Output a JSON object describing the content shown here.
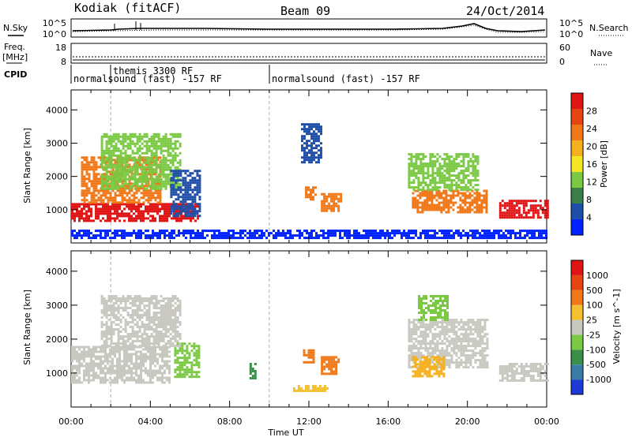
{
  "header": {
    "station": "Kodiak (fitACF)",
    "beam": "Beam 09",
    "date": "24/Oct/2014"
  },
  "top_panels": {
    "nsky_label": "N.Sky",
    "nsearch_label": "N.Search",
    "noise_ticks_left": [
      "10^5",
      "10^0"
    ],
    "noise_ticks_right": [
      "10^5",
      "10^0"
    ],
    "freq_label_1": "Freq.",
    "freq_label_2": "[MHz]",
    "freq_ticks": [
      "18",
      "8"
    ],
    "nave_label": "Nave",
    "nave_ticks": [
      "60",
      "0"
    ],
    "cpid_label": "CPID",
    "cpid_entries": [
      {
        "text": "normalsound (fast) -157 RF",
        "start_hour": 0
      },
      {
        "text": "themis 3300 RF",
        "start_hour": 2
      },
      {
        "text": "normalsound (fast) -157 RF",
        "start_hour": 10
      }
    ]
  },
  "power_colorbar": {
    "title": "Power [dB]",
    "ticks": [
      "28",
      "24",
      "20",
      "16",
      "12",
      "8",
      "4"
    ],
    "colors": [
      "#0022ff",
      "#1f4ea8",
      "#3a7f4a",
      "#7ac943",
      "#f5e625",
      "#f5b01e",
      "#f07818",
      "#e64512",
      "#e01414"
    ]
  },
  "velocity_colorbar": {
    "title": "Velocity [m s^-1]",
    "ticks": [
      "1000",
      "500",
      "100",
      "25",
      "-25",
      "-100",
      "-500",
      "-1000"
    ],
    "colors": [
      "#1e3ad6",
      "#3a7ea8",
      "#3a8f4a",
      "#7ac943",
      "#c8c8c0",
      "#f5c030",
      "#f07818",
      "#e64512",
      "#e01414"
    ]
  },
  "chart_data": [
    {
      "type": "heatmap",
      "name": "power",
      "ylabel": "Slant Range [km]",
      "xlabel": "Time UT",
      "ylim": [
        0,
        4600
      ],
      "xlim_hours": [
        0,
        24
      ],
      "yticks": [
        "4000",
        "3000",
        "2000",
        "1000"
      ],
      "xticks": [
        "00:00",
        "04:00",
        "08:00",
        "12:00",
        "16:00",
        "20:00",
        "00:00"
      ],
      "dashed_lines_hours": [
        2,
        10
      ],
      "echo_regions": [
        {
          "t0": 0.0,
          "t1": 6.4,
          "r0": 700,
          "r1": 1200,
          "color": "#e01414"
        },
        {
          "t0": 0.5,
          "t1": 4.5,
          "r0": 1200,
          "r1": 2600,
          "color": "#f07818"
        },
        {
          "t0": 1.5,
          "t1": 5.5,
          "r0": 1600,
          "r1": 3300,
          "color": "#7ac943"
        },
        {
          "t0": 5.0,
          "t1": 6.5,
          "r0": 800,
          "r1": 2200,
          "color": "#1f4ea8"
        },
        {
          "t0": 11.6,
          "t1": 12.6,
          "r0": 2400,
          "r1": 3600,
          "color": "#1f4ea8"
        },
        {
          "t0": 11.8,
          "t1": 12.3,
          "r0": 1300,
          "r1": 1700,
          "color": "#f07818"
        },
        {
          "t0": 12.6,
          "t1": 13.6,
          "r0": 1000,
          "r1": 1500,
          "color": "#f07818"
        },
        {
          "t0": 17.2,
          "t1": 21.0,
          "r0": 900,
          "r1": 1600,
          "color": "#f07818"
        },
        {
          "t0": 17.0,
          "t1": 20.5,
          "r0": 1600,
          "r1": 2700,
          "color": "#7ac943"
        },
        {
          "t0": 21.6,
          "t1": 24.0,
          "r0": 800,
          "r1": 1300,
          "color": "#e01414"
        },
        {
          "t0": 0.0,
          "t1": 24.0,
          "r0": 150,
          "r1": 400,
          "color": "#0022ff"
        }
      ]
    },
    {
      "type": "heatmap",
      "name": "velocity",
      "ylabel": "Slant Range [km]",
      "xlabel": "Time UT",
      "ylim": [
        0,
        4600
      ],
      "xlim_hours": [
        0,
        24
      ],
      "yticks": [
        "4000",
        "3000",
        "2000",
        "1000"
      ],
      "xticks": [
        "00:00",
        "04:00",
        "08:00",
        "12:00",
        "16:00",
        "20:00",
        "00:00"
      ],
      "dashed_lines_hours": [
        2,
        10
      ],
      "echo_regions": [
        {
          "t0": 0.0,
          "t1": 5.0,
          "r0": 700,
          "r1": 1800,
          "color": "#c8c8c0"
        },
        {
          "t0": 1.5,
          "t1": 5.5,
          "r0": 1800,
          "r1": 3300,
          "color": "#c8c8c0"
        },
        {
          "t0": 5.2,
          "t1": 6.5,
          "r0": 900,
          "r1": 1900,
          "color": "#7ac943"
        },
        {
          "t0": 9.0,
          "t1": 9.3,
          "r0": 850,
          "r1": 1300,
          "color": "#3a8f4a"
        },
        {
          "t0": 11.7,
          "t1": 12.2,
          "r0": 1300,
          "r1": 1700,
          "color": "#f07818"
        },
        {
          "t0": 12.6,
          "t1": 13.5,
          "r0": 1000,
          "r1": 1500,
          "color": "#f07818"
        },
        {
          "t0": 11.2,
          "t1": 12.9,
          "r0": 500,
          "r1": 650,
          "color": "#f5c030"
        },
        {
          "t0": 17.0,
          "t1": 21.0,
          "r0": 1200,
          "r1": 2600,
          "color": "#c8c8c0"
        },
        {
          "t0": 17.2,
          "t1": 18.8,
          "r0": 900,
          "r1": 1500,
          "color": "#f5b01e"
        },
        {
          "t0": 17.5,
          "t1": 19.0,
          "r0": 2600,
          "r1": 3300,
          "color": "#7ac943"
        },
        {
          "t0": 21.6,
          "t1": 24.0,
          "r0": 800,
          "r1": 1300,
          "color": "#c8c8c0"
        }
      ]
    }
  ]
}
